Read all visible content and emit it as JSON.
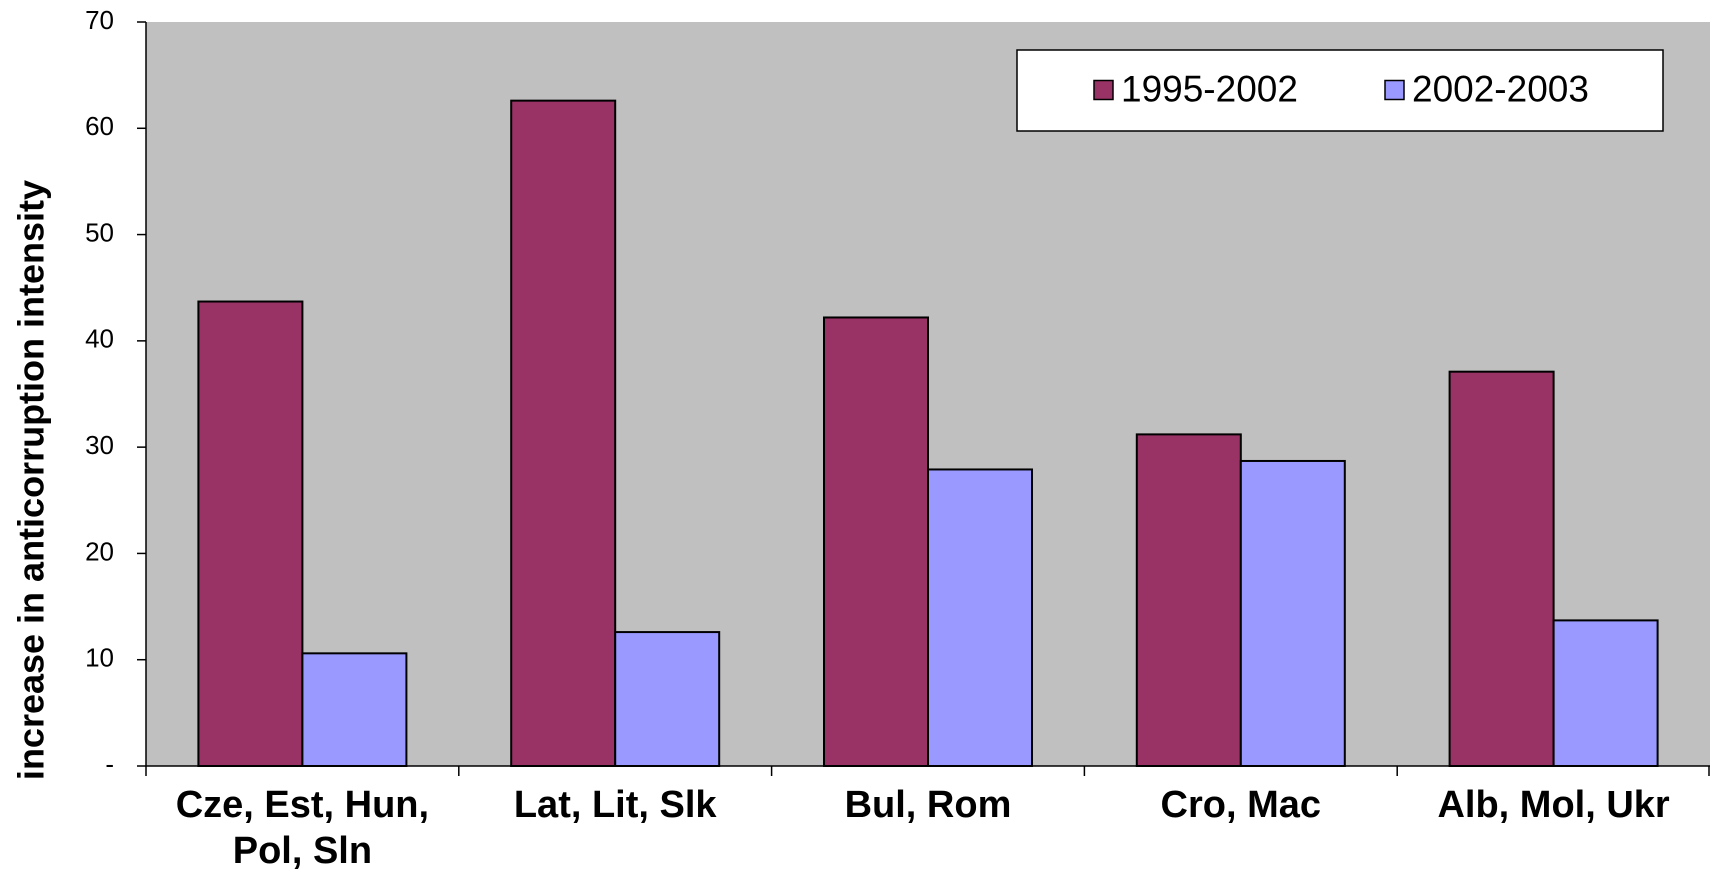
{
  "chart_data": {
    "type": "bar",
    "y_label": "increase in anticorruption intensity",
    "categories": [
      "Cze, Est, Hun, Pol, Sln",
      "Lat, Lit, Slk",
      "Bul, Rom",
      "Cro, Mac",
      "Alb, Mol, Ukr"
    ],
    "series": [
      {
        "name": "1995-2002",
        "color": "#993366",
        "values": [
          43.7,
          62.6,
          42.2,
          31.2,
          37.1
        ]
      },
      {
        "name": "2002-2003",
        "color": "#9999ff",
        "values": [
          10.6,
          12.6,
          27.9,
          28.7,
          13.7
        ]
      }
    ],
    "ylim": [
      0,
      70
    ],
    "yticks": [
      {
        "value": 0,
        "label": "-"
      },
      10,
      20,
      30,
      40,
      50,
      60,
      70
    ],
    "legend": "top-right",
    "background": "#c0c0c0"
  }
}
